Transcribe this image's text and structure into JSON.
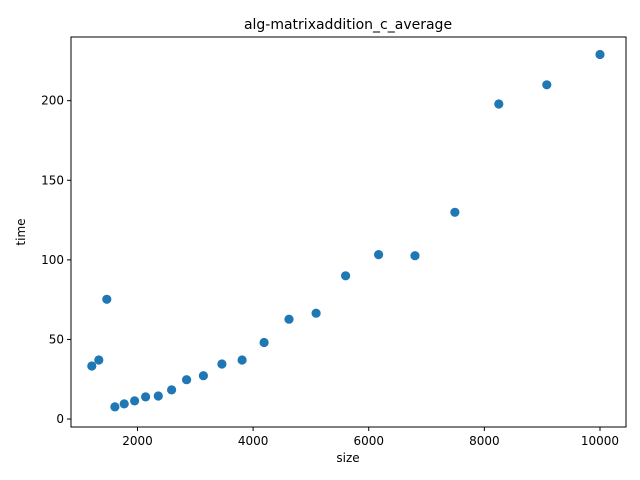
{
  "chart_data": {
    "type": "scatter",
    "title": "alg-matrixaddition_c_average",
    "xlabel": "size",
    "ylabel": "time",
    "xlim": [
      850,
      10450
    ],
    "ylim": [
      -5,
      240
    ],
    "xticks": [
      2000,
      4000,
      6000,
      8000,
      10000
    ],
    "yticks": [
      0,
      50,
      100,
      150,
      200
    ],
    "grid": false,
    "marker_color": "#1f77b4",
    "points": [
      {
        "x": 1210,
        "y": 33.3
      },
      {
        "x": 1330,
        "y": 37.1
      },
      {
        "x": 1470,
        "y": 75.2
      },
      {
        "x": 1610,
        "y": 7.6
      },
      {
        "x": 1770,
        "y": 9.5
      },
      {
        "x": 1950,
        "y": 11.4
      },
      {
        "x": 2140,
        "y": 13.9
      },
      {
        "x": 2360,
        "y": 14.5
      },
      {
        "x": 2590,
        "y": 18.3
      },
      {
        "x": 2850,
        "y": 24.7
      },
      {
        "x": 3140,
        "y": 27.2
      },
      {
        "x": 3460,
        "y": 34.6
      },
      {
        "x": 3810,
        "y": 37.1
      },
      {
        "x": 4190,
        "y": 48.1
      },
      {
        "x": 4620,
        "y": 62.7
      },
      {
        "x": 5090,
        "y": 66.5
      },
      {
        "x": 5600,
        "y": 90.0
      },
      {
        "x": 6170,
        "y": 103.3
      },
      {
        "x": 6800,
        "y": 102.6
      },
      {
        "x": 7490,
        "y": 129.9
      },
      {
        "x": 8250,
        "y": 197.9
      },
      {
        "x": 9080,
        "y": 210.0
      },
      {
        "x": 10000,
        "y": 229.0
      }
    ]
  }
}
